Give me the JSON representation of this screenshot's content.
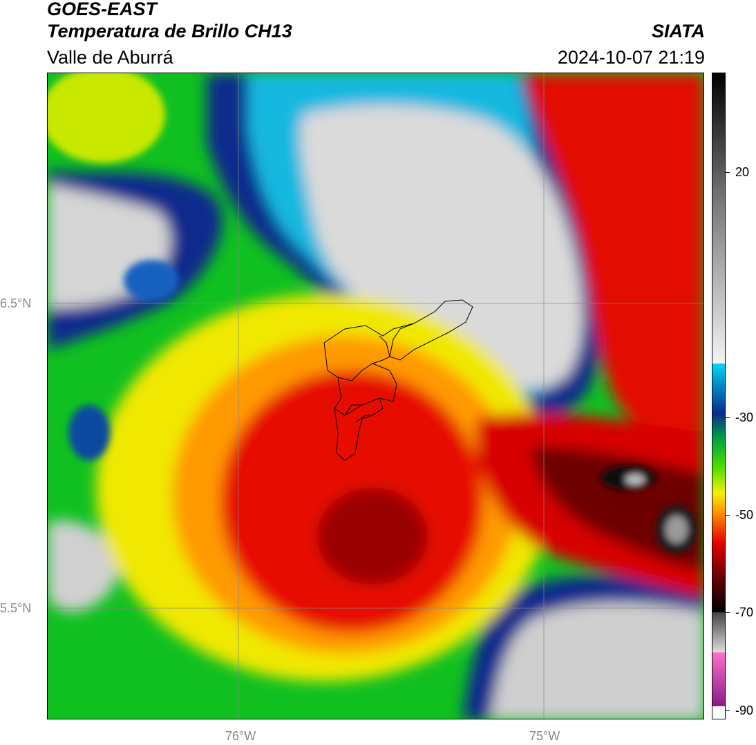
{
  "header": {
    "satellite": "GOES-EAST",
    "product": "Temperatura de Brillo CH13",
    "region": "Valle de Aburrá",
    "organization": "SIATA",
    "datetime": "2024-10-07 21:19"
  },
  "map": {
    "lat_labels": [
      "6.5°N",
      "5.5°N"
    ],
    "lon_labels": [
      "76°W",
      "75°W"
    ]
  },
  "colorbar": {
    "ticks": [
      "20",
      "-30",
      "-50",
      "-70",
      "-90"
    ],
    "colors": {
      "warm_gray": "#dcdcdc",
      "cyan": "#00c8e6",
      "dark_blue": "#0a2a8c",
      "green": "#00c800",
      "yellow": "#f5f000",
      "orange": "#ff8c00",
      "red": "#e60000",
      "dark_red": "#6e0000",
      "black": "#000000",
      "magenta": "#b4329b"
    }
  }
}
